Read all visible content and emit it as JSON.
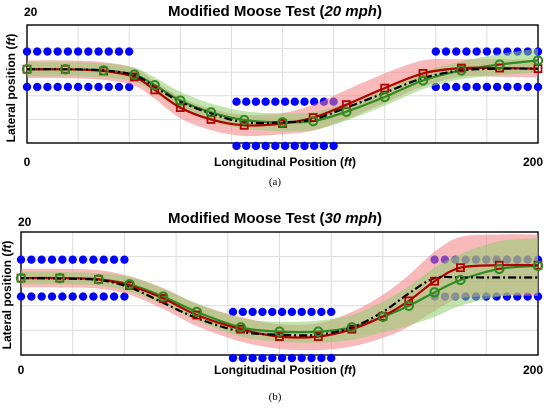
{
  "colors": {
    "cone": "#0000ff",
    "reference": "#000000",
    "red_series": "#b30000",
    "red_band": "#f08080",
    "green_series": "#2e8b22",
    "green_band": "#90d070",
    "grid": "#dddddd"
  },
  "charts": [
    {
      "title_prefix": "Modified Moose Test (",
      "title_speed": "20 mph",
      "title_suffix": ")",
      "ylabel_prefix": "Lateral position (",
      "ylabel_unit": "ft",
      "ylabel_suffix": ")",
      "xlabel_prefix": "Longitudinal Position (",
      "xlabel_unit": "ft",
      "xlabel_suffix": ")",
      "x_tick_left": "0",
      "x_tick_right": "200",
      "y_tick_top": "20",
      "caption": "(a)"
    },
    {
      "title_prefix": "Modified Moose Test (",
      "title_speed": "30 mph",
      "title_suffix": ")",
      "ylabel_prefix": "Lateral position (",
      "ylabel_unit": "ft",
      "ylabel_suffix": ")",
      "xlabel_prefix": "Longitudinal Position (",
      "xlabel_unit": "ft",
      "xlabel_suffix": ")",
      "x_tick_left": "0",
      "x_tick_right": "200",
      "y_tick_top": "20",
      "caption": "(b)"
    }
  ],
  "chart_data": [
    {
      "type": "line",
      "title": "Modified Moose Test (20 mph)",
      "xlabel": "Longitudinal Position (ft)",
      "ylabel": "Lateral position (ft)",
      "xlim": [
        0,
        200
      ],
      "ylim": [
        0,
        20
      ],
      "grid": true,
      "cones": [
        {
          "x_start": 0,
          "x_end": 40,
          "y": 15.5
        },
        {
          "x_start": 0,
          "x_end": 40,
          "y": 9.5
        },
        {
          "x_start": 82,
          "x_end": 120,
          "y": 7.0
        },
        {
          "x_start": 82,
          "x_end": 120,
          "y": -0.5
        },
        {
          "x_start": 160,
          "x_end": 200,
          "y": 15.5
        },
        {
          "x_start": 160,
          "x_end": 200,
          "y": 9.5
        }
      ],
      "series": [
        {
          "style": "reference-dashdot",
          "x": [
            0,
            15,
            30,
            42,
            50,
            60,
            72,
            85,
            100,
            112,
            125,
            140,
            155,
            170,
            185,
            200
          ],
          "y": [
            12.5,
            12.5,
            12.3,
            11.5,
            9.5,
            7.0,
            5.0,
            3.5,
            3.5,
            4.0,
            6.0,
            8.5,
            11.0,
            12.3,
            12.6,
            12.6
          ]
        },
        {
          "style": "red-squares",
          "x": [
            0,
            15,
            30,
            42,
            50,
            60,
            72,
            85,
            100,
            112,
            125,
            140,
            155,
            170,
            185,
            200
          ],
          "y": [
            12.5,
            12.5,
            12.2,
            11.2,
            9.0,
            6.0,
            4.0,
            3.0,
            3.3,
            4.3,
            6.5,
            9.3,
            11.8,
            12.7,
            12.7,
            12.6
          ],
          "band": [
            1.5,
            1.5,
            1.5,
            1.5,
            1.5,
            1.8,
            1.8,
            1.8,
            1.8,
            2.2,
            2.5,
            2.5,
            2.2,
            1.5,
            1.5,
            1.5
          ]
        },
        {
          "style": "green-circles",
          "x": [
            0,
            15,
            30,
            42,
            50,
            60,
            72,
            85,
            100,
            112,
            125,
            140,
            155,
            170,
            185,
            200
          ],
          "y": [
            12.5,
            12.5,
            12.3,
            11.6,
            9.8,
            7.2,
            5.2,
            3.9,
            3.5,
            3.7,
            5.3,
            7.8,
            10.6,
            12.3,
            13.3,
            14.0
          ],
          "band": [
            1.2,
            1.2,
            1.2,
            1.2,
            1.3,
            1.5,
            1.5,
            1.5,
            1.5,
            1.5,
            1.5,
            1.5,
            1.5,
            1.5,
            1.8,
            2.0
          ]
        }
      ]
    },
    {
      "type": "line",
      "title": "Modified Moose Test (30 mph)",
      "xlabel": "Longitudinal Position (ft)",
      "ylabel": "Lateral position (ft)",
      "xlim": [
        0,
        200
      ],
      "ylim": [
        0,
        20
      ],
      "grid": true,
      "cones": [
        {
          "x_start": 0,
          "x_end": 40,
          "y": 15.5
        },
        {
          "x_start": 0,
          "x_end": 40,
          "y": 9.5
        },
        {
          "x_start": 82,
          "x_end": 120,
          "y": 7.0
        },
        {
          "x_start": 82,
          "x_end": 120,
          "y": -0.5
        },
        {
          "x_start": 160,
          "x_end": 200,
          "y": 15.5
        },
        {
          "x_start": 160,
          "x_end": 200,
          "y": 9.5
        }
      ],
      "series": [
        {
          "style": "reference-dashdot",
          "x": [
            0,
            15,
            30,
            42,
            55,
            68,
            85,
            100,
            115,
            128,
            140,
            150,
            160,
            170,
            185,
            200
          ],
          "y": [
            12.5,
            12.4,
            12.2,
            11.0,
            8.5,
            6.0,
            3.8,
            3.3,
            3.3,
            4.5,
            7.0,
            10.0,
            12.5,
            12.6,
            12.6,
            12.6
          ],
          "x_last_flat_start": 165
        },
        {
          "style": "red-squares",
          "x": [
            0,
            15,
            30,
            42,
            55,
            68,
            85,
            100,
            115,
            128,
            140,
            150,
            160,
            170,
            185,
            200
          ],
          "y": [
            12.5,
            12.5,
            12.3,
            11.3,
            9.2,
            6.5,
            4.2,
            3.0,
            3.0,
            4.2,
            6.3,
            8.8,
            12.0,
            14.2,
            14.6,
            14.6
          ],
          "band": [
            1.5,
            1.5,
            1.5,
            1.5,
            1.7,
            1.8,
            2.0,
            2.0,
            2.2,
            2.8,
            3.5,
            4.2,
            4.8,
            5.0,
            5.0,
            5.0
          ]
        },
        {
          "style": "green-circles",
          "x": [
            0,
            15,
            30,
            42,
            55,
            68,
            85,
            100,
            115,
            128,
            140,
            150,
            160,
            170,
            185,
            200
          ],
          "y": [
            12.5,
            12.5,
            12.3,
            11.5,
            9.5,
            7.0,
            4.5,
            3.8,
            3.8,
            4.5,
            6.2,
            8.0,
            10.2,
            12.2,
            14.0,
            14.5
          ],
          "band": [
            1.0,
            1.0,
            1.0,
            1.2,
            1.3,
            1.4,
            1.5,
            1.6,
            1.8,
            2.0,
            2.5,
            3.2,
            4.0,
            4.2,
            4.5,
            4.5
          ]
        }
      ]
    }
  ]
}
